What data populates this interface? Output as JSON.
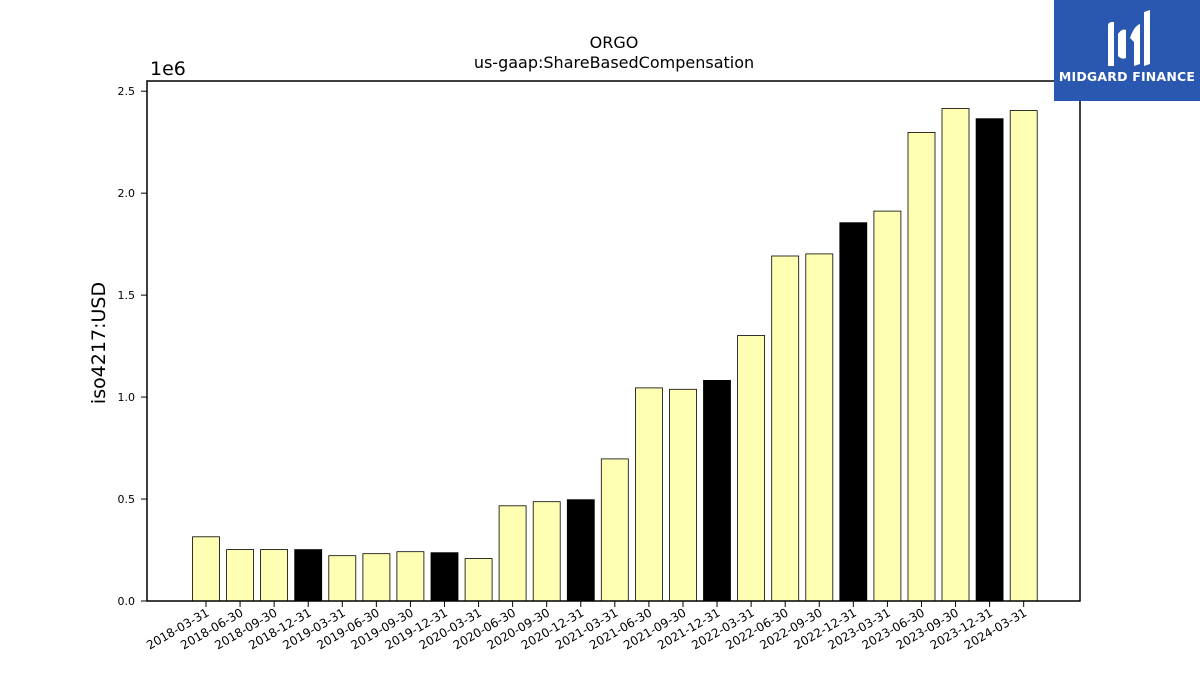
{
  "chart_data": {
    "type": "bar",
    "title": "ORGO",
    "subtitle": "us-gaap:ShareBasedCompensation",
    "ylabel": "iso4217:USD",
    "xlabel": "",
    "y_scale_label": "1e6",
    "ylim": [
      0,
      2.55
    ],
    "y_unit_multiplier": 1000000,
    "yticks": [
      "0.0",
      "0.5",
      "1.0",
      "1.5",
      "2.0",
      "2.5"
    ],
    "grid": false,
    "colors": {
      "quarter": "#ffffb3",
      "year_end": "#000000",
      "edge": "#000000"
    },
    "categories": [
      "2018-03-31",
      "2018-06-30",
      "2018-09-30",
      "2018-12-31",
      "2019-03-31",
      "2019-06-30",
      "2019-09-30",
      "2019-12-31",
      "2020-03-31",
      "2020-06-30",
      "2020-09-30",
      "2020-12-31",
      "2021-03-31",
      "2021-06-30",
      "2021-09-30",
      "2021-12-31",
      "2022-03-31",
      "2022-06-30",
      "2022-09-30",
      "2022-12-31",
      "2023-03-31",
      "2023-06-30",
      "2023-09-30",
      "2023-12-31",
      "2024-03-31"
    ],
    "values": [
      0.315,
      0.252,
      0.252,
      0.252,
      0.222,
      0.232,
      0.242,
      0.237,
      0.208,
      0.467,
      0.487,
      0.497,
      0.697,
      1.045,
      1.038,
      1.082,
      1.302,
      1.692,
      1.702,
      1.855,
      1.912,
      2.298,
      2.415,
      2.365,
      2.405
    ],
    "year_end": [
      false,
      false,
      false,
      true,
      false,
      false,
      false,
      true,
      false,
      false,
      false,
      true,
      false,
      false,
      false,
      true,
      false,
      false,
      false,
      true,
      false,
      false,
      false,
      true,
      false
    ]
  },
  "logo": {
    "text": "MIDGARD FINANCE",
    "icon": "midgard-logo-icon"
  }
}
